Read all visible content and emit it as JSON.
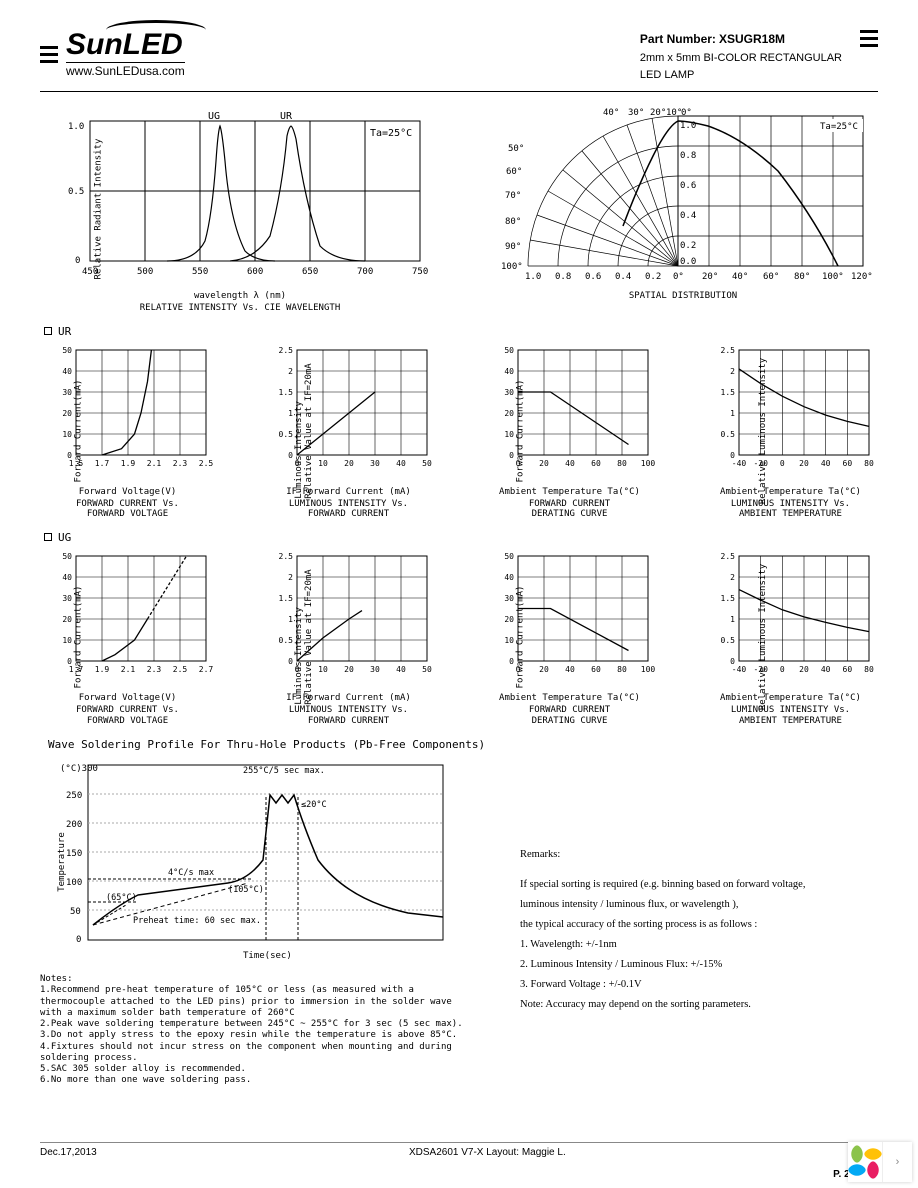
{
  "header": {
    "logo_text": "SunLED",
    "url": "www.SunLEDusa.com",
    "part_label": "Part Number:",
    "part_number": "XSUGR18M",
    "desc1": "2mm x 5mm BI-COLOR RECTANGULAR",
    "desc2": "LED LAMP"
  },
  "sections": {
    "ur": "UR",
    "ug": "UG"
  },
  "chart1": {
    "type": "line",
    "title_x": "wavelength λ (nm)",
    "title": "RELATIVE INTENSITY Vs. CIE WAVELENGTH",
    "ylabel": "Relative Radiant Intensity",
    "annotation": "Ta=25°C",
    "series_labels": [
      "UG",
      "UR"
    ],
    "xlim": [
      450,
      750
    ],
    "xtick_step": 50,
    "ylim": [
      0,
      1.0
    ],
    "yticks": [
      0,
      0.5,
      1.0
    ],
    "ug_peak": 565,
    "ur_peak": 630,
    "line_color": "#000000",
    "grid_color": "#000000",
    "bg": "#ffffff"
  },
  "chart2": {
    "type": "polar",
    "title": "SPATIAL DISTRIBUTION",
    "annotation": "Ta=25°C",
    "angle_ticks_top": [
      "40°",
      "30°",
      "20°",
      "10°",
      "0°"
    ],
    "angle_ticks_left": [
      "50°",
      "60°",
      "70°",
      "80°",
      "90°",
      "100°"
    ],
    "angle_ticks_right": [
      "0°",
      "20°",
      "40°",
      "60°",
      "80°",
      "100°",
      "120°"
    ],
    "radial_ticks_left": [
      "1.0",
      "0.8",
      "0.6",
      "0.4",
      "0.2"
    ],
    "radial_ticks_right": [
      "0.0",
      "0.2",
      "0.4",
      "0.6",
      "0.8",
      "1.0"
    ],
    "line_color": "#000000",
    "grid_color": "#000000"
  },
  "ur_charts": [
    {
      "type": "line",
      "xlabel": "Forward Voltage(V)",
      "title": "FORWARD CURRENT Vs.\nFORWARD VOLTAGE",
      "ylabel": "Forward Current(mA)",
      "xlim": [
        1.5,
        2.5
      ],
      "xticks": [
        "1.5",
        "1.7",
        "1.9",
        "2.1",
        "2.3",
        "2.5"
      ],
      "ylim": [
        0,
        50
      ],
      "ytick_step": 10,
      "data": [
        [
          1.7,
          0
        ],
        [
          1.85,
          3
        ],
        [
          1.95,
          10
        ],
        [
          2.0,
          20
        ],
        [
          2.05,
          35
        ],
        [
          2.08,
          50
        ]
      ]
    },
    {
      "type": "line",
      "xlabel": "IF-Forward Current (mA)",
      "title": "LUMINOUS INTENSITY Vs.\nFORWARD CURRENT",
      "ylabel": "Luminous Intensity\nRelative Value at IF=20mA",
      "xlim": [
        0,
        50
      ],
      "xtick_step": 10,
      "ylim": [
        0,
        2.5
      ],
      "ytick_step": 0.5,
      "data": [
        [
          0,
          0
        ],
        [
          10,
          0.5
        ],
        [
          20,
          1.0
        ],
        [
          30,
          1.5
        ]
      ]
    },
    {
      "type": "line",
      "xlabel": "Ambient Temperature Ta(°C)",
      "title": "FORWARD CURRENT\nDERATING CURVE",
      "ylabel": "Forward Current(mA)",
      "xlim": [
        0,
        100
      ],
      "xtick_step": 20,
      "ylim": [
        0,
        50
      ],
      "ytick_step": 10,
      "data": [
        [
          0,
          30
        ],
        [
          25,
          30
        ],
        [
          85,
          5
        ]
      ]
    },
    {
      "type": "line",
      "xlabel": "Ambient Temperature Ta(°C)",
      "title": "LUMINOUS INTENSITY Vs.\nAMBIENT TEMPERATURE",
      "ylabel": "Relative Luminous Intensity",
      "xlim": [
        -40,
        80
      ],
      "xticks": [
        "-40",
        "-20",
        "0",
        "20",
        "40",
        "60",
        "80"
      ],
      "ylim": [
        0,
        2.5
      ],
      "ytick_step": 0.5,
      "data": [
        [
          -40,
          2.05
        ],
        [
          -20,
          1.7
        ],
        [
          0,
          1.4
        ],
        [
          20,
          1.15
        ],
        [
          40,
          0.95
        ],
        [
          60,
          0.8
        ],
        [
          80,
          0.68
        ]
      ]
    }
  ],
  "ug_charts": [
    {
      "type": "line",
      "xlabel": "Forward Voltage(V)",
      "title": "FORWARD CURRENT Vs.\nFORWARD VOLTAGE",
      "ylabel": "Forward Current(mA)",
      "xlim": [
        1.7,
        2.7
      ],
      "xticks": [
        "1.7",
        "1.9",
        "2.1",
        "2.3",
        "2.5",
        "2.7"
      ],
      "ylim": [
        0,
        50
      ],
      "ytick_step": 10,
      "data": [
        [
          1.9,
          0
        ],
        [
          2.0,
          3
        ],
        [
          2.15,
          10
        ],
        [
          2.25,
          20
        ],
        [
          2.35,
          30
        ],
        [
          2.5,
          45
        ],
        [
          2.55,
          50
        ]
      ],
      "dashed_from": 2.35
    },
    {
      "type": "line",
      "xlabel": "IF-Forward Current (mA)",
      "title": "LUMINOUS INTENSITY Vs.\nFORWARD CURRENT",
      "ylabel": "Luminous Intensity\nRelative Value at IF=20mA",
      "xlim": [
        0,
        50
      ],
      "xtick_step": 10,
      "ylim": [
        0,
        2.5
      ],
      "ytick_step": 0.5,
      "data": [
        [
          0,
          0
        ],
        [
          10,
          0.55
        ],
        [
          20,
          1.0
        ],
        [
          25,
          1.2
        ]
      ]
    },
    {
      "type": "line",
      "xlabel": "Ambient Temperature Ta(°C)",
      "title": "FORWARD CURRENT\nDERATING CURVE",
      "ylabel": "Forward Current(mA)",
      "xlim": [
        0,
        100
      ],
      "xtick_step": 20,
      "ylim": [
        0,
        50
      ],
      "ytick_step": 10,
      "data": [
        [
          0,
          25
        ],
        [
          25,
          25
        ],
        [
          85,
          5
        ]
      ]
    },
    {
      "type": "line",
      "xlabel": "Ambient Temperature Ta(°C)",
      "title": "LUMINOUS INTENSITY Vs.\nAMBIENT TEMPERATURE",
      "ylabel": "Relative Luminous Intensity",
      "xlim": [
        -40,
        80
      ],
      "xticks": [
        "-40",
        "-20",
        "0",
        "20",
        "40",
        "60",
        "80"
      ],
      "ylim": [
        0,
        2.5
      ],
      "ytick_step": 0.5,
      "data": [
        [
          -40,
          1.7
        ],
        [
          -20,
          1.45
        ],
        [
          0,
          1.22
        ],
        [
          20,
          1.05
        ],
        [
          40,
          0.92
        ],
        [
          60,
          0.8
        ],
        [
          80,
          0.7
        ]
      ]
    }
  ],
  "solder": {
    "title": "Wave Soldering Profile For Thru-Hole Products (Pb-Free Components)",
    "ylabel": "Temperature",
    "xlabel": "Time(sec)",
    "ylim": [
      0,
      300
    ],
    "ytick_step": 50,
    "yunit": "(°C)",
    "annotations": [
      "255°C/5 sec max.",
      "≤20°C",
      "4°C/s max",
      "(105°C)",
      "(65°C)",
      "Preheat time: 60 sec max."
    ],
    "line_color": "#000000",
    "grid_color": "#aaaaaa"
  },
  "notes": {
    "heading": "Notes:",
    "items": [
      "1.Recommend pre-heat temperature of 105°C or less (as measured with a thermocouple attached to the LED pins) prior to immersion in the solder wave with a maximum solder bath temperature of 260°C",
      "2.Peak wave soldering temperature between 245°C ~ 255°C for 3 sec (5 sec max).",
      "3.Do not apply stress to the epoxy resin while the temperature is above 85°C.",
      "4.Fixtures should not incur stress on the component when mounting and during soldering process.",
      "5.SAC 305 solder alloy is recommended.",
      "6.No more than one wave soldering pass."
    ]
  },
  "remarks": {
    "heading": "Remarks:",
    "lines": [
      "If special sorting is required (e.g. binning based on forward voltage,",
      "luminous intensity / luminous flux, or wavelength ),",
      "the typical accuracy of the sorting process is as follows :",
      "1. Wavelength: +/-1nm",
      "2. Luminous Intensity / Luminous Flux: +/-15%",
      "3. Forward Voltage : +/-0.1V",
      "Note: Accuracy may depend on the sorting parameters."
    ]
  },
  "footer": {
    "date": "Dec.17,2013",
    "center": "XDSA2601    V7-X    Layout: Maggie L.",
    "page": "P. 2/3"
  },
  "colors": {
    "text": "#000000",
    "grid": "#000000",
    "light_grid": "#aaaaaa"
  }
}
